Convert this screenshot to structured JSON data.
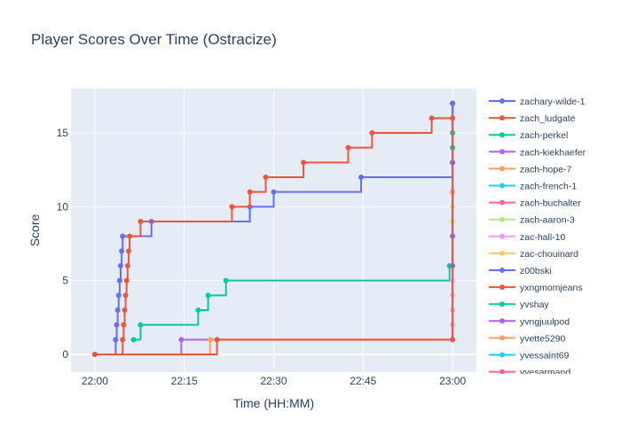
{
  "chart_data": {
    "type": "line",
    "title": "Player Scores Over Time (Ostracize)",
    "xlabel": "Time (HH:MM)",
    "ylabel": "Score",
    "x_unit": "HH:MM",
    "xlim": [
      "21:56",
      "23:04"
    ],
    "ylim": [
      -1.2,
      18
    ],
    "x_ticks": [
      "22:00",
      "22:15",
      "22:30",
      "22:45",
      "23:00"
    ],
    "y_ticks": [
      0,
      5,
      10,
      15
    ],
    "grid": true,
    "line_shape": "step",
    "legend_position": "right",
    "legend_truncated": true,
    "series": [
      {
        "name": "zachary-wilde-1",
        "color": "#636efa",
        "points": [
          [
            "22:00:00",
            0
          ],
          [
            "22:03:30",
            1
          ],
          [
            "22:03:40",
            2
          ],
          [
            "22:03:50",
            3
          ],
          [
            "22:04:00",
            4
          ],
          [
            "22:04:10",
            5
          ],
          [
            "22:04:20",
            6
          ],
          [
            "22:04:30",
            7
          ],
          [
            "22:04:40",
            8
          ],
          [
            "22:09:30",
            9
          ],
          [
            "22:26:00",
            10
          ],
          [
            "22:30:00",
            11
          ],
          [
            "22:44:40",
            12
          ],
          [
            "23:00:00",
            13
          ],
          [
            "23:00:00",
            17
          ]
        ]
      },
      {
        "name": "zach_ludgate",
        "color": "#ef553b",
        "points": [
          [
            "22:00:00",
            0
          ],
          [
            "22:04:40",
            1
          ],
          [
            "22:04:50",
            2
          ],
          [
            "22:05:00",
            3
          ],
          [
            "22:05:10",
            4
          ],
          [
            "22:05:20",
            5
          ],
          [
            "22:05:30",
            6
          ],
          [
            "22:05:40",
            7
          ],
          [
            "22:05:50",
            8
          ],
          [
            "22:07:40",
            9
          ],
          [
            "22:23:00",
            10
          ],
          [
            "22:26:00",
            11
          ],
          [
            "22:28:40",
            12
          ],
          [
            "22:35:00",
            13
          ],
          [
            "22:42:30",
            14
          ],
          [
            "22:46:30",
            15
          ],
          [
            "22:56:30",
            16
          ],
          [
            "23:00:00",
            17
          ]
        ]
      },
      {
        "name": "zach-perkel",
        "color": "#00cc96",
        "points": [
          [
            "22:06:30",
            1
          ],
          [
            "22:07:40",
            2
          ],
          [
            "22:17:20",
            3
          ],
          [
            "22:19:00",
            4
          ],
          [
            "22:22:00",
            5
          ],
          [
            "22:59:30",
            6
          ],
          [
            "23:00:00",
            14
          ],
          [
            "23:00:00",
            15
          ]
        ]
      },
      {
        "name": "zach-kiekhaefer",
        "color": "#ab63fa",
        "points": [
          [
            "22:00:00",
            0
          ],
          [
            "22:14:30",
            1
          ],
          [
            "23:00:00",
            1
          ],
          [
            "23:00:00",
            17
          ]
        ]
      },
      {
        "name": "zach-hope-7",
        "color": "#ffa15a",
        "points": [
          [
            "22:00:00",
            0
          ],
          [
            "22:19:20",
            1
          ],
          [
            "23:00:00",
            1
          ],
          [
            "23:00:00",
            11
          ]
        ]
      },
      {
        "name": "zach-french-1",
        "color": "#19d3f3",
        "points": []
      },
      {
        "name": "zach-buchalter",
        "color": "#ff6692",
        "points": []
      },
      {
        "name": "zach-aaron-3",
        "color": "#b6e880",
        "points": [
          [
            "23:00:00",
            9
          ],
          [
            "23:00:00",
            10
          ]
        ]
      },
      {
        "name": "zac-hall-10",
        "color": "#ff97ff",
        "points": [
          [
            "23:00:00",
            1
          ],
          [
            "23:00:00",
            2
          ],
          [
            "23:00:00",
            3
          ],
          [
            "23:00:00",
            4
          ],
          [
            "23:00:00",
            5
          ],
          [
            "23:00:00",
            16
          ]
        ]
      },
      {
        "name": "zac-chouinard",
        "color": "#fecb52",
        "points": []
      },
      {
        "name": "z00bski",
        "color": "#636efa",
        "points": [
          [
            "23:00:00",
            6
          ],
          [
            "23:00:00",
            8
          ],
          [
            "23:00:00",
            13
          ],
          [
            "23:00:00",
            17
          ]
        ]
      },
      {
        "name": "yxngmomjeans",
        "color": "#ef553b",
        "points": [
          [
            "22:00:00",
            0
          ],
          [
            "22:20:30",
            1
          ],
          [
            "23:00:00",
            1
          ],
          [
            "23:00:00",
            16
          ]
        ]
      },
      {
        "name": "yvshay",
        "color": "#00cc96",
        "points": []
      },
      {
        "name": "yvngjuulpod",
        "color": "#ab63fa",
        "points": []
      },
      {
        "name": "yvette5290",
        "color": "#ffa15a",
        "points": []
      },
      {
        "name": "yvessaint69",
        "color": "#19d3f3",
        "points": []
      },
      {
        "name": "yvesarmand",
        "color": "#ff6692",
        "points": []
      }
    ]
  }
}
